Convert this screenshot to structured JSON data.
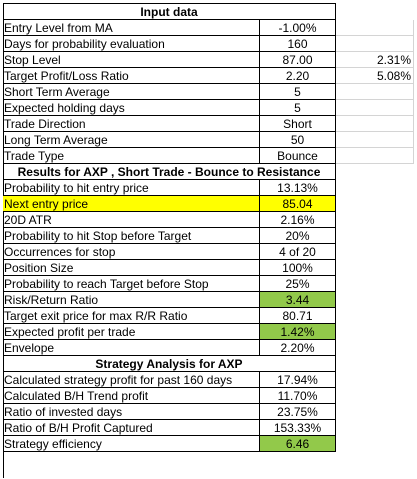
{
  "sections": {
    "input_title": "Input data",
    "results_title": "Results for AXP , Short Trade - Bounce to Resistance",
    "strategy_title": "Strategy Analysis for AXP"
  },
  "input_rows": [
    {
      "label": "Entry Level from MA",
      "value": "-1.00%",
      "extra": ""
    },
    {
      "label": "Days for probability evaluation",
      "value": "160",
      "extra": ""
    },
    {
      "label": "Stop Level",
      "value": "87.00",
      "extra": "2.31%"
    },
    {
      "label": "Target Profit/Loss Ratio",
      "value": "2.20",
      "extra": "5.08%"
    },
    {
      "label": "Short Term Average",
      "value": "5",
      "extra": ""
    },
    {
      "label": "Expected holding days",
      "value": "5",
      "extra": ""
    },
    {
      "label": "Trade Direction",
      "value": "Short",
      "extra": ""
    },
    {
      "label": "Long Term Average",
      "value": "50",
      "extra": ""
    },
    {
      "label": "Trade Type",
      "value": "Bounce",
      "extra": ""
    }
  ],
  "result_rows": [
    {
      "label": "Probability to hit entry price",
      "value": "13.13%"
    },
    {
      "label": "Next entry price",
      "value": "85.04"
    },
    {
      "label": "20D ATR",
      "value": "2.16%"
    },
    {
      "label": "Probability to hit Stop before Target",
      "value": "20%"
    },
    {
      "label": "Occurrences for stop",
      "value": "4 of 20"
    },
    {
      "label": "Position Size",
      "value": "100%"
    },
    {
      "label": "Probability to reach Target before Stop",
      "value": "25%"
    },
    {
      "label": "Risk/Return Ratio",
      "value": "3.44"
    },
    {
      "label": "Target exit price for max R/R Ratio",
      "value": "80.71"
    },
    {
      "label": "Expected profit per trade",
      "value": "1.42%"
    },
    {
      "label": "Envelope",
      "value": "2.20%"
    }
  ],
  "strategy_rows": [
    {
      "label": "Calculated strategy profit for past 160 days",
      "value": "17.94%"
    },
    {
      "label": "Calculated B/H Trend profit",
      "value": "11.70%"
    },
    {
      "label": "Ratio of invested days",
      "value": "23.75%"
    },
    {
      "label": "Ratio of B/H Profit Captured",
      "value": "153.33%"
    },
    {
      "label": "Strategy efficiency",
      "value": "6.46"
    }
  ],
  "colors": {
    "highlight_yellow": "#ffff00",
    "highlight_green": "#92c94a"
  }
}
